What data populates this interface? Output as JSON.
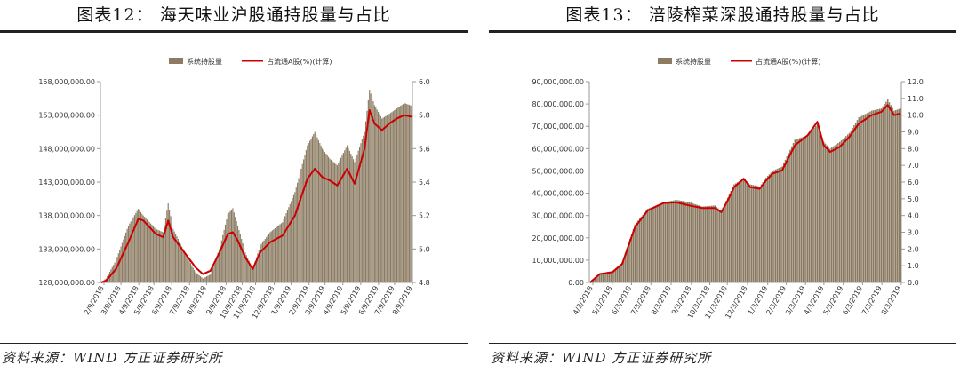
{
  "colors": {
    "bar": "#8b7b62",
    "line": "#cc0000",
    "axis": "#999999",
    "text": "#333333",
    "rule": "#222222"
  },
  "chart_data": [
    {
      "type": "bar",
      "title": "图表12： 海天味业沪股通持股量与占比",
      "source": "资料来源：WIND 方正证券研究所",
      "series": [
        {
          "name": "系统持股量",
          "type": "bar",
          "axis": "left",
          "knots": [
            [
              0,
              128000000
            ],
            [
              4,
              128600000
            ],
            [
              12,
              131300000
            ],
            [
              22,
              136500000
            ],
            [
              30,
              139000000
            ],
            [
              34,
              138000000
            ],
            [
              44,
              136000000
            ],
            [
              50,
              135500000
            ],
            [
              54,
              139800000
            ],
            [
              58,
              136000000
            ],
            [
              66,
              133000000
            ],
            [
              76,
              129500000
            ],
            [
              82,
              128600000
            ],
            [
              88,
              129200000
            ],
            [
              96,
              133500000
            ],
            [
              102,
              138200000
            ],
            [
              106,
              139100000
            ],
            [
              110,
              136500000
            ],
            [
              116,
              132500000
            ],
            [
              122,
              130000000
            ],
            [
              128,
              133500000
            ],
            [
              136,
              135500000
            ],
            [
              146,
              137000000
            ],
            [
              156,
              141500000
            ],
            [
              166,
              148500000
            ],
            [
              172,
              150500000
            ],
            [
              178,
              148000000
            ],
            [
              184,
              146500000
            ],
            [
              190,
              145500000
            ],
            [
              198,
              148500000
            ],
            [
              204,
              146000000
            ],
            [
              212,
              150500000
            ],
            [
              216,
              156800000
            ],
            [
              220,
              154500000
            ],
            [
              226,
              152500000
            ],
            [
              232,
              153200000
            ],
            [
              238,
              154000000
            ],
            [
              244,
              154800000
            ],
            [
              250,
              154400000
            ]
          ]
        },
        {
          "name": "占流通A股(%)(计算)",
          "type": "line",
          "axis": "right",
          "knots": [
            [
              0,
              4.8
            ],
            [
              4,
              4.81
            ],
            [
              12,
              4.88
            ],
            [
              22,
              5.04
            ],
            [
              30,
              5.18
            ],
            [
              34,
              5.17
            ],
            [
              44,
              5.09
            ],
            [
              50,
              5.07
            ],
            [
              54,
              5.17
            ],
            [
              58,
              5.07
            ],
            [
              66,
              4.99
            ],
            [
              76,
              4.89
            ],
            [
              82,
              4.85
            ],
            [
              88,
              4.87
            ],
            [
              96,
              4.99
            ],
            [
              102,
              5.09
            ],
            [
              106,
              5.1
            ],
            [
              110,
              5.05
            ],
            [
              116,
              4.95
            ],
            [
              122,
              4.88
            ],
            [
              128,
              4.98
            ],
            [
              136,
              5.04
            ],
            [
              146,
              5.08
            ],
            [
              156,
              5.2
            ],
            [
              166,
              5.42
            ],
            [
              172,
              5.48
            ],
            [
              178,
              5.43
            ],
            [
              184,
              5.41
            ],
            [
              190,
              5.38
            ],
            [
              198,
              5.48
            ],
            [
              204,
              5.39
            ],
            [
              212,
              5.6
            ],
            [
              216,
              5.83
            ],
            [
              220,
              5.75
            ],
            [
              226,
              5.71
            ],
            [
              232,
              5.75
            ],
            [
              238,
              5.78
            ],
            [
              244,
              5.8
            ],
            [
              250,
              5.79
            ]
          ]
        }
      ],
      "x_ticks": [
        {
          "label": "2/9/2018",
          "i": 0
        },
        {
          "label": "3/9/2018",
          "i": 19
        },
        {
          "label": "4/9/2018",
          "i": 39
        },
        {
          "label": "5/9/2018",
          "i": 56
        },
        {
          "label": "6/9/2018",
          "i": 76
        },
        {
          "label": "7/9/2018",
          "i": 96
        },
        {
          "label": "8/9/2018",
          "i": 115
        },
        {
          "label": "9/9/2018",
          "i": 137
        },
        {
          "label": "10/9/2018",
          "i": 155
        },
        {
          "label": "11/9/2018",
          "i": 170
        },
        {
          "label": "12/9/2018",
          "i": 191
        },
        {
          "label": "1/9/2019",
          "i": 210
        },
        {
          "label": "2/9/2019",
          "i": 230
        },
        {
          "label": "3/9/2019",
          "i": 248
        },
        {
          "label": "4/9/2019",
          "i": 268
        },
        {
          "label": "5/9/2019",
          "i": 288
        },
        {
          "label": "6/9/2019",
          "i": 308
        },
        {
          "label": "7/9/2019",
          "i": 326
        },
        {
          "label": "8/9/2019",
          "i": 346
        }
      ],
      "x_count": 251,
      "y_left": {
        "min": 128000000,
        "max": 158000000,
        "ticks": [
          "128,000,000.00",
          "133,000,000.00",
          "138,000,000.00",
          "143,000,000.00",
          "148,000,000.00",
          "153,000,000.00",
          "158,000,000.00"
        ]
      },
      "y_right": {
        "min": 4.8,
        "max": 6.0,
        "ticks": [
          "4.8",
          "5.0",
          "5.2",
          "5.4",
          "5.6",
          "5.8",
          "6.0"
        ]
      },
      "legend": "top-center"
    },
    {
      "type": "bar",
      "title": "图表13： 涪陵榨菜深股通持股量与占比",
      "source": "资料来源：WIND 方正证券研究所",
      "series": [
        {
          "name": "系统持股量",
          "type": "bar",
          "axis": "left",
          "knots": [
            [
              0,
              0
            ],
            [
              6,
              4000000
            ],
            [
              14,
              5000000
            ],
            [
              20,
              9000000
            ],
            [
              28,
              26000000
            ],
            [
              36,
              33000000
            ],
            [
              46,
              36000000
            ],
            [
              54,
              37000000
            ],
            [
              62,
              36000000
            ],
            [
              70,
              34000000
            ],
            [
              78,
              34500000
            ],
            [
              82,
              32000000
            ],
            [
              86,
              38000000
            ],
            [
              90,
              44000000
            ],
            [
              96,
              46500000
            ],
            [
              100,
              44000000
            ],
            [
              106,
              43000000
            ],
            [
              110,
              47000000
            ],
            [
              114,
              50000000
            ],
            [
              120,
              52000000
            ],
            [
              128,
              64000000
            ],
            [
              136,
              66000000
            ],
            [
              142,
              71000000
            ],
            [
              146,
              63000000
            ],
            [
              150,
              60000000
            ],
            [
              156,
              63000000
            ],
            [
              162,
              67000000
            ],
            [
              168,
              74000000
            ],
            [
              176,
              77000000
            ],
            [
              182,
              78000000
            ],
            [
              186,
              82000000
            ],
            [
              190,
              77000000
            ],
            [
              194,
              78000000
            ]
          ]
        },
        {
          "name": "占流通A股(%)(计算)",
          "type": "line",
          "axis": "right",
          "knots": [
            [
              0,
              0
            ],
            [
              6,
              0.5
            ],
            [
              14,
              0.62
            ],
            [
              20,
              1.1
            ],
            [
              28,
              3.3
            ],
            [
              36,
              4.3
            ],
            [
              46,
              4.75
            ],
            [
              54,
              4.78
            ],
            [
              62,
              4.6
            ],
            [
              70,
              4.45
            ],
            [
              78,
              4.45
            ],
            [
              82,
              4.2
            ],
            [
              86,
              4.9
            ],
            [
              90,
              5.7
            ],
            [
              96,
              6.2
            ],
            [
              100,
              5.7
            ],
            [
              106,
              5.6
            ],
            [
              110,
              6.1
            ],
            [
              114,
              6.5
            ],
            [
              120,
              6.7
            ],
            [
              128,
              8.2
            ],
            [
              136,
              8.8
            ],
            [
              142,
              9.6
            ],
            [
              146,
              8.2
            ],
            [
              150,
              7.8
            ],
            [
              156,
              8.1
            ],
            [
              162,
              8.7
            ],
            [
              168,
              9.5
            ],
            [
              176,
              10.0
            ],
            [
              182,
              10.2
            ],
            [
              186,
              10.6
            ],
            [
              190,
              10.0
            ],
            [
              194,
              10.1
            ]
          ]
        }
      ],
      "x_ticks": [
        {
          "label": "4/3/2018",
          "i": 0
        },
        {
          "label": "5/3/2018",
          "i": 21
        },
        {
          "label": "6/3/2018",
          "i": 42
        },
        {
          "label": "7/3/2018",
          "i": 63
        },
        {
          "label": "8/3/2018",
          "i": 85
        },
        {
          "label": "9/3/2018",
          "i": 107
        },
        {
          "label": "10/3/2018",
          "i": 127
        },
        {
          "label": "11/3/2018",
          "i": 146
        },
        {
          "label": "12/3/2018",
          "i": 168
        },
        {
          "label": "1/3/2019",
          "i": 190
        },
        {
          "label": "2/3/2019",
          "i": 210
        },
        {
          "label": "3/3/2019",
          "i": 231
        },
        {
          "label": "4/3/2019",
          "i": 251
        },
        {
          "label": "5/3/2019",
          "i": 272
        },
        {
          "label": "6/3/2019",
          "i": 293
        },
        {
          "label": "7/3/2019",
          "i": 314
        },
        {
          "label": "8/3/2019",
          "i": 335
        }
      ],
      "x_count": 195,
      "y_left": {
        "min": 0,
        "max": 90000000,
        "ticks": [
          "0.00",
          "10,000,000.00",
          "20,000,000.00",
          "30,000,000.00",
          "40,000,000.00",
          "50,000,000.00",
          "60,000,000.00",
          "70,000,000.00",
          "80,000,000.00",
          "90,000,000.00"
        ]
      },
      "y_right": {
        "min": 0,
        "max": 12,
        "ticks": [
          "0.0",
          "1.0",
          "2.0",
          "3.0",
          "4.0",
          "5.0",
          "6.0",
          "7.0",
          "8.0",
          "9.0",
          "10.0",
          "11.0",
          "12.0"
        ]
      },
      "legend": "top-center"
    }
  ]
}
